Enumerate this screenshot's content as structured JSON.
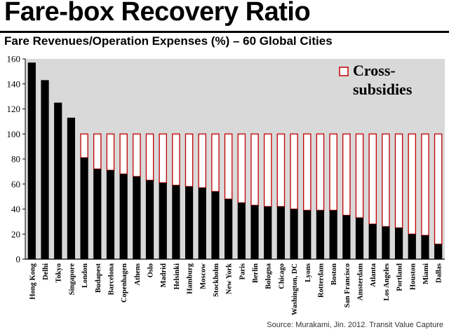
{
  "header": {
    "title": "Fare-box Recovery Ratio",
    "subtitle": "Fare Revenues/Operation Expenses (%) – 60 Global Cities"
  },
  "footer": {
    "source": "Source: Murakami, Jin. 2012. Transit Value Capture"
  },
  "colors": {
    "plot_background": "#d9d9d9",
    "fare_bar": "#000000",
    "subsidy_bar_fill": "#ffffff",
    "subsidy_bar_border": "#c00000"
  },
  "chart_data": {
    "type": "bar",
    "stacked": true,
    "categories": [
      "Hong Kong",
      "Delhi",
      "Tokyo",
      "Singapore",
      "London",
      "Budapest",
      "Barcelona",
      "Copenhagen",
      "Athens",
      "Oslo",
      "Madrid",
      "Helsinki",
      "Hamburg",
      "Moscow",
      "Stockholm",
      "New York",
      "Paris",
      "Berlin",
      "Bologna",
      "Chicago",
      "Washington, DC",
      "Lyons",
      "Rotterdam",
      "Boston",
      "San Francisco",
      "Amsterdam",
      "Atlanta",
      "Los Angeles",
      "Portland",
      "Houston",
      "Miami",
      "Dallas"
    ],
    "values": [
      157,
      143,
      125,
      113,
      81,
      72,
      71,
      68,
      66,
      63,
      61,
      59,
      58,
      57,
      54,
      48,
      45,
      43,
      42,
      42,
      40,
      39,
      39,
      39,
      35,
      33,
      28,
      26,
      25,
      20,
      19,
      12
    ],
    "overlay_total": 100,
    "legend": {
      "label": "Cross-subsidies",
      "label_lines": [
        "Cross-",
        "subsidies"
      ],
      "placement": "top-right"
    },
    "ylim": [
      0,
      160
    ],
    "yticks": [
      0,
      20,
      40,
      60,
      80,
      100,
      120,
      140,
      160
    ],
    "grid": false,
    "xlabel": "",
    "ylabel": ""
  }
}
